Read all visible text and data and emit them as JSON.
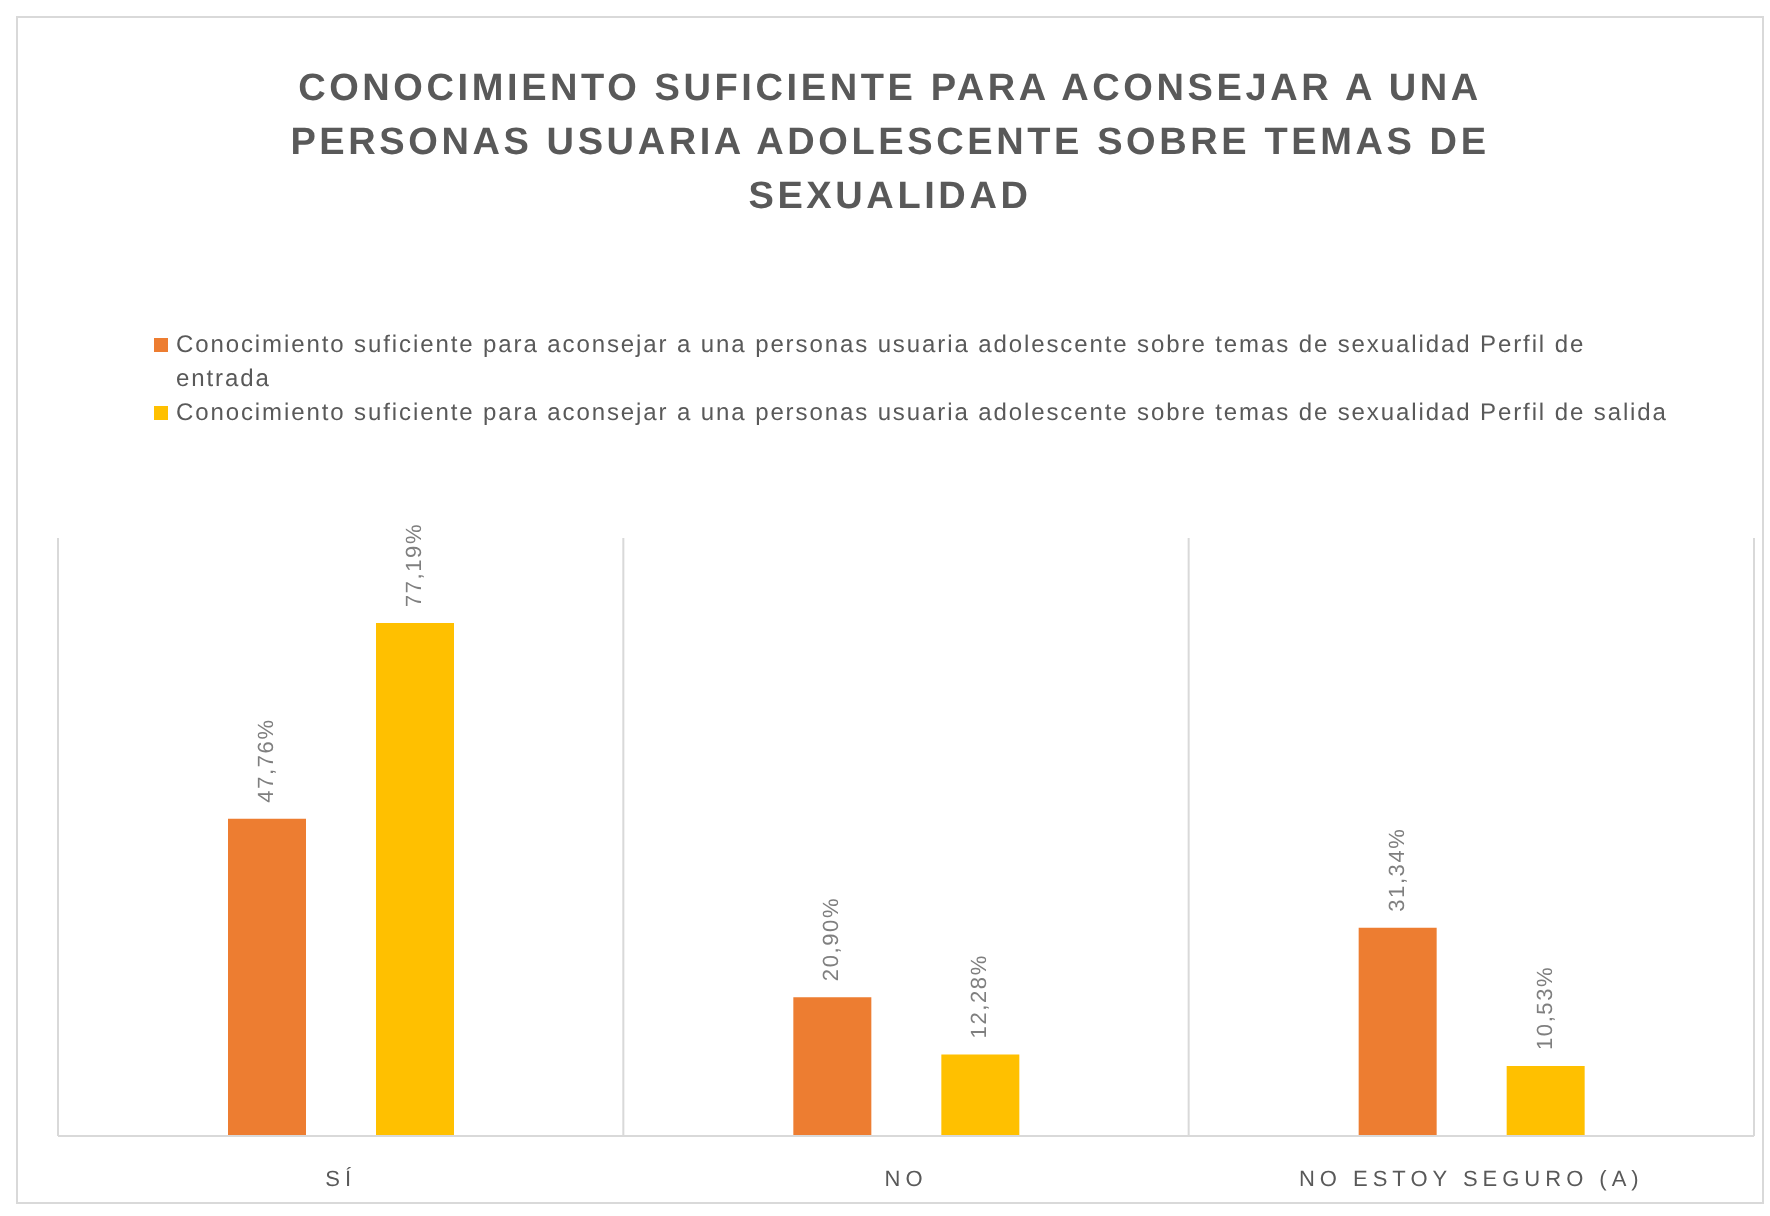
{
  "chart_data": {
    "type": "bar",
    "title": "CONOCIMIENTO SUFICIENTE PARA ACONSEJAR A UNA PERSONAS USUARIA ADOLESCENTE SOBRE TEMAS DE SEXUALIDAD",
    "categories": [
      "SÍ",
      "NO",
      "NO ESTOY SEGURO (A)"
    ],
    "series": [
      {
        "name": "Conocimiento suficiente para aconsejar a una personas usuaria adolescente sobre temas de sexualidad Perfil de entrada",
        "color": "#ed7d31",
        "values": [
          47.76,
          20.9,
          31.34
        ],
        "value_labels": [
          "47,76%",
          "20,90%",
          "31,34%"
        ]
      },
      {
        "name": "Conocimiento suficiente para aconsejar a una personas usuaria adolescente sobre temas de sexualidad Perfil de salida",
        "color": "#ffc000",
        "values": [
          77.19,
          12.28,
          10.53
        ],
        "value_labels": [
          "77,19%",
          "12,28%",
          "10,53%"
        ]
      }
    ],
    "grid": "x",
    "legend": "top",
    "tick_labels": "x"
  }
}
